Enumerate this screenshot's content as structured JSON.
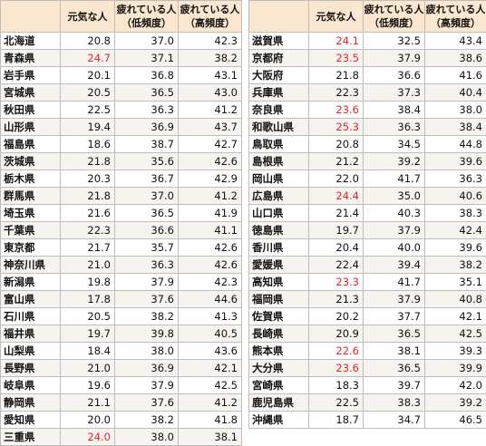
{
  "headers": {
    "genki": "元気な人",
    "tsukare_line1": "疲れている人",
    "low_freq": "（低頻度）",
    "high_freq": "（高頻度）"
  },
  "highlight_color": "#e8242a",
  "left_rows": [
    {
      "pref": "北海道",
      "genki": "20.8",
      "low": "37.0",
      "high": "42.3",
      "hl": false
    },
    {
      "pref": "青森県",
      "genki": "24.7",
      "low": "37.1",
      "high": "38.2",
      "hl": true
    },
    {
      "pref": "岩手県",
      "genki": "20.1",
      "low": "36.8",
      "high": "43.1",
      "hl": false
    },
    {
      "pref": "宮城県",
      "genki": "20.5",
      "low": "36.5",
      "high": "43.0",
      "hl": false
    },
    {
      "pref": "秋田県",
      "genki": "22.5",
      "low": "36.3",
      "high": "41.2",
      "hl": false
    },
    {
      "pref": "山形県",
      "genki": "19.4",
      "low": "36.9",
      "high": "43.7",
      "hl": false
    },
    {
      "pref": "福島県",
      "genki": "18.6",
      "low": "38.7",
      "high": "42.7",
      "hl": false
    },
    {
      "pref": "茨城県",
      "genki": "21.8",
      "low": "35.6",
      "high": "42.6",
      "hl": false
    },
    {
      "pref": "栃木県",
      "genki": "20.3",
      "low": "36.7",
      "high": "42.9",
      "hl": false
    },
    {
      "pref": "群馬県",
      "genki": "21.8",
      "low": "37.0",
      "high": "41.2",
      "hl": false
    },
    {
      "pref": "埼玉県",
      "genki": "21.6",
      "low": "36.5",
      "high": "41.9",
      "hl": false
    },
    {
      "pref": "千葉県",
      "genki": "22.3",
      "low": "36.6",
      "high": "41.1",
      "hl": false
    },
    {
      "pref": "東京都",
      "genki": "21.7",
      "low": "35.7",
      "high": "42.6",
      "hl": false
    },
    {
      "pref": "神奈川県",
      "genki": "21.0",
      "low": "36.3",
      "high": "42.6",
      "hl": false
    },
    {
      "pref": "新潟県",
      "genki": "19.8",
      "low": "37.9",
      "high": "42.3",
      "hl": false
    },
    {
      "pref": "富山県",
      "genki": "17.8",
      "low": "37.6",
      "high": "44.6",
      "hl": false
    },
    {
      "pref": "石川県",
      "genki": "20.5",
      "low": "38.2",
      "high": "41.3",
      "hl": false
    },
    {
      "pref": "福井県",
      "genki": "19.7",
      "low": "39.8",
      "high": "40.5",
      "hl": false
    },
    {
      "pref": "山梨県",
      "genki": "18.4",
      "low": "38.0",
      "high": "43.6",
      "hl": false
    },
    {
      "pref": "長野県",
      "genki": "21.0",
      "low": "36.9",
      "high": "42.1",
      "hl": false
    },
    {
      "pref": "岐阜県",
      "genki": "19.6",
      "low": "37.9",
      "high": "42.5",
      "hl": false
    },
    {
      "pref": "静岡県",
      "genki": "21.1",
      "low": "37.6",
      "high": "41.2",
      "hl": false
    },
    {
      "pref": "愛知県",
      "genki": "20.0",
      "low": "38.2",
      "high": "41.8",
      "hl": false
    },
    {
      "pref": "三重県",
      "genki": "24.0",
      "low": "38.0",
      "high": "38.1",
      "hl": true
    }
  ],
  "right_rows": [
    {
      "pref": "滋賀県",
      "genki": "24.1",
      "low": "32.5",
      "high": "43.4",
      "hl": true
    },
    {
      "pref": "京都府",
      "genki": "23.5",
      "low": "37.9",
      "high": "38.6",
      "hl": true
    },
    {
      "pref": "大阪府",
      "genki": "21.8",
      "low": "36.6",
      "high": "41.6",
      "hl": false
    },
    {
      "pref": "兵庫県",
      "genki": "22.3",
      "low": "37.3",
      "high": "40.4",
      "hl": false
    },
    {
      "pref": "奈良県",
      "genki": "23.6",
      "low": "38.4",
      "high": "38.0",
      "hl": true
    },
    {
      "pref": "和歌山県",
      "genki": "25.3",
      "low": "36.3",
      "high": "38.4",
      "hl": true
    },
    {
      "pref": "鳥取県",
      "genki": "20.8",
      "low": "34.5",
      "high": "44.8",
      "hl": false
    },
    {
      "pref": "島根県",
      "genki": "21.2",
      "low": "39.2",
      "high": "39.6",
      "hl": false
    },
    {
      "pref": "岡山県",
      "genki": "22.0",
      "low": "41.7",
      "high": "36.3",
      "hl": false
    },
    {
      "pref": "広島県",
      "genki": "24.4",
      "low": "35.0",
      "high": "40.6",
      "hl": true
    },
    {
      "pref": "山口県",
      "genki": "21.4",
      "low": "40.3",
      "high": "38.3",
      "hl": false
    },
    {
      "pref": "徳島県",
      "genki": "19.7",
      "low": "37.9",
      "high": "42.4",
      "hl": false
    },
    {
      "pref": "香川県",
      "genki": "20.4",
      "low": "40.0",
      "high": "39.6",
      "hl": false
    },
    {
      "pref": "愛媛県",
      "genki": "22.4",
      "low": "39.4",
      "high": "38.2",
      "hl": false
    },
    {
      "pref": "高知県",
      "genki": "23.3",
      "low": "41.7",
      "high": "35.1",
      "hl": true
    },
    {
      "pref": "福岡県",
      "genki": "21.3",
      "low": "37.9",
      "high": "40.8",
      "hl": false
    },
    {
      "pref": "佐賀県",
      "genki": "20.2",
      "low": "37.7",
      "high": "42.1",
      "hl": false
    },
    {
      "pref": "長崎県",
      "genki": "20.9",
      "low": "36.5",
      "high": "42.5",
      "hl": false
    },
    {
      "pref": "熊本県",
      "genki": "22.6",
      "low": "38.1",
      "high": "39.3",
      "hl": true
    },
    {
      "pref": "大分県",
      "genki": "23.6",
      "low": "36.5",
      "high": "39.9",
      "hl": true
    },
    {
      "pref": "宮崎県",
      "genki": "18.3",
      "low": "39.7",
      "high": "42.0",
      "hl": false
    },
    {
      "pref": "鹿児島県",
      "genki": "22.5",
      "low": "38.3",
      "high": "39.2",
      "hl": false
    },
    {
      "pref": "沖縄県",
      "genki": "18.7",
      "low": "34.7",
      "high": "46.5",
      "hl": false
    }
  ]
}
